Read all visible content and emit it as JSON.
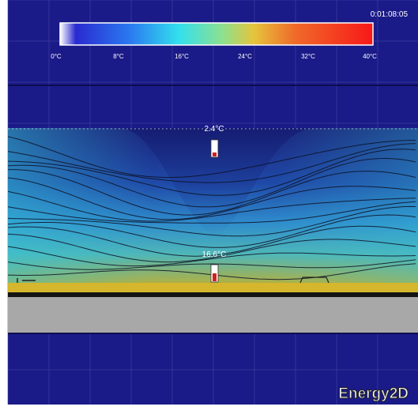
{
  "timer": "0:01:08:05",
  "scale": {
    "ticks": [
      "0°C",
      "8°C",
      "16°C",
      "24°C",
      "32°C",
      "40°C"
    ]
  },
  "thermometers": [
    {
      "label": "2.4°C"
    },
    {
      "label": "16.6°C"
    }
  ],
  "brand": "Energy2D",
  "colors": {
    "background": "#1a1a88",
    "grid": "#5a5ab4",
    "cold": "#12126e",
    "warm": "#c8b424",
    "ground": "#a8a8a8",
    "strip": "#d6b62c"
  }
}
